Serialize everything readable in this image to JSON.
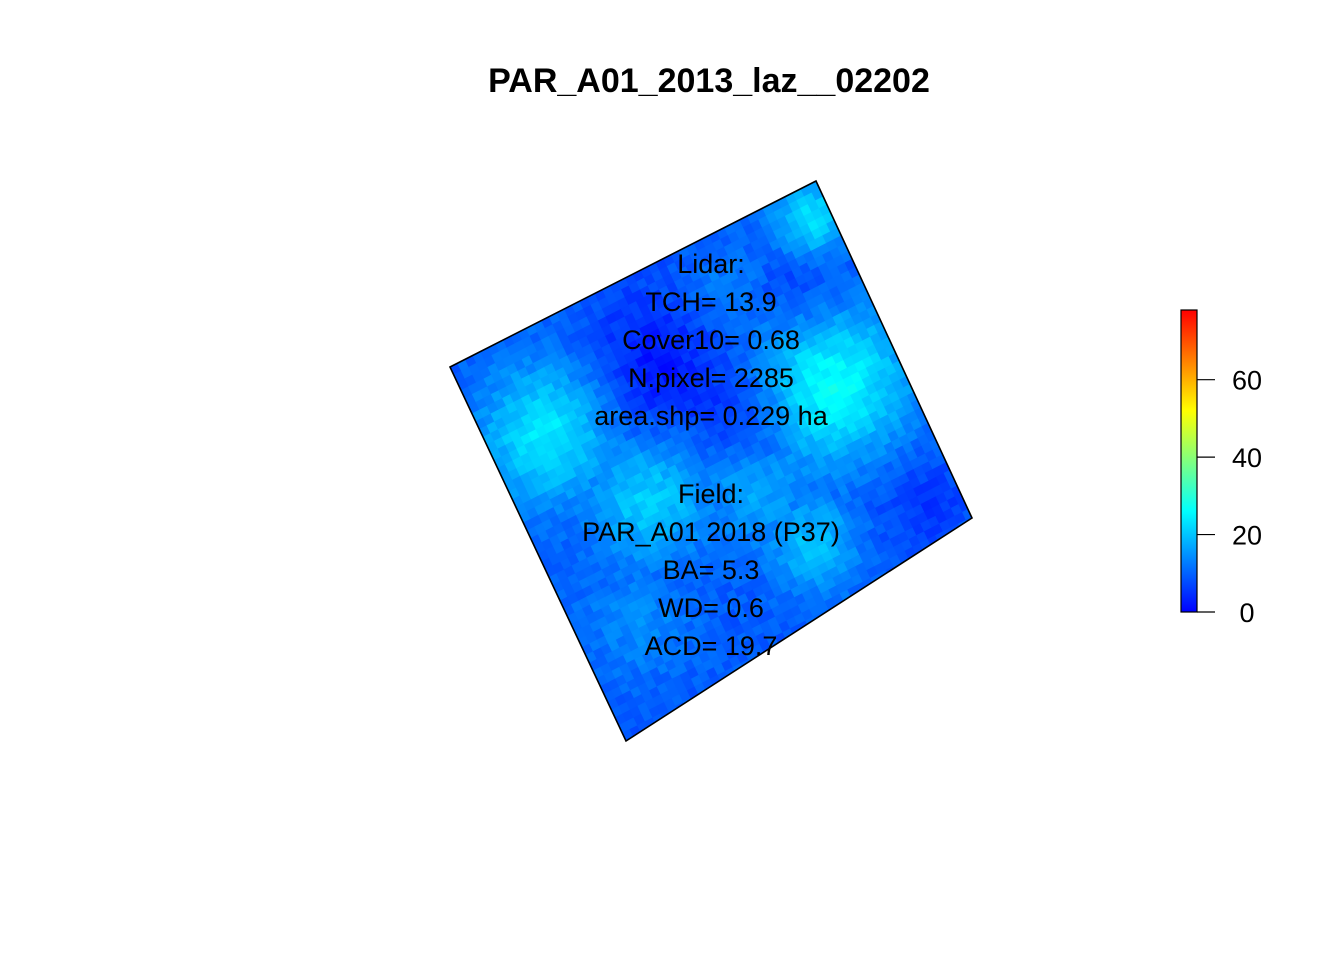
{
  "chart_data": {
    "type": "heatmap",
    "title": "PAR_A01_2013_laz__02202",
    "xlabel": "",
    "ylabel": "",
    "grid": false,
    "colorbar": {
      "min": 0,
      "max": 78,
      "ticks": [
        0,
        20,
        40,
        60
      ],
      "tick_labels": [
        "0",
        "20",
        "40",
        "60"
      ],
      "palette": [
        "#0000ff",
        "#00ffff",
        "#ffff00",
        "#ff0000"
      ],
      "placement": "right"
    },
    "annotations": {
      "lidar_header": "Lidar:",
      "tch": "TCH= 13.9",
      "cover10": "Cover10= 0.68",
      "npixel": "N.pixel= 2285",
      "area": "area.shp= 0.229 ha",
      "field_header": "Field:",
      "plot_id": "PAR_A01 2018 (P37)",
      "ba": "BA= 5.3",
      "wd": "WD= 0.6",
      "acd": "ACD= 19.7"
    },
    "values": {
      "TCH": 13.9,
      "Cover10": 0.68,
      "N.pixel": 2285,
      "area.shp_ha": 0.229,
      "BA": 5.3,
      "WD": 0.6,
      "ACD": 19.7
    },
    "heights": {
      "background": 9,
      "crowns": [
        {
          "u": 0.15,
          "v": 0.25,
          "height": 24,
          "spread": 0.12
        },
        {
          "u": 0.82,
          "v": 0.45,
          "height": 27,
          "spread": 0.14
        },
        {
          "u": 0.3,
          "v": 0.5,
          "height": 21,
          "spread": 0.11
        },
        {
          "u": 0.95,
          "v": 0.08,
          "height": 23,
          "spread": 0.07
        },
        {
          "u": 0.62,
          "v": 0.78,
          "height": 20,
          "spread": 0.08
        },
        {
          "u": 0.55,
          "v": 0.6,
          "height": 17,
          "spread": 0.1
        },
        {
          "u": 0.15,
          "v": 0.75,
          "height": 14,
          "spread": 0.1
        },
        {
          "u": 0.7,
          "v": 0.15,
          "height": 14,
          "spread": 0.08
        }
      ],
      "gaps": [
        {
          "u": 0.45,
          "v": 0.22,
          "depth": 7,
          "spread": 0.12
        },
        {
          "u": 0.62,
          "v": 0.42,
          "depth": 6,
          "spread": 0.08
        },
        {
          "u": 0.85,
          "v": 0.25,
          "depth": 5,
          "spread": 0.09
        },
        {
          "u": 0.9,
          "v": 0.8,
          "depth": 4,
          "spread": 0.08
        }
      ]
    }
  }
}
